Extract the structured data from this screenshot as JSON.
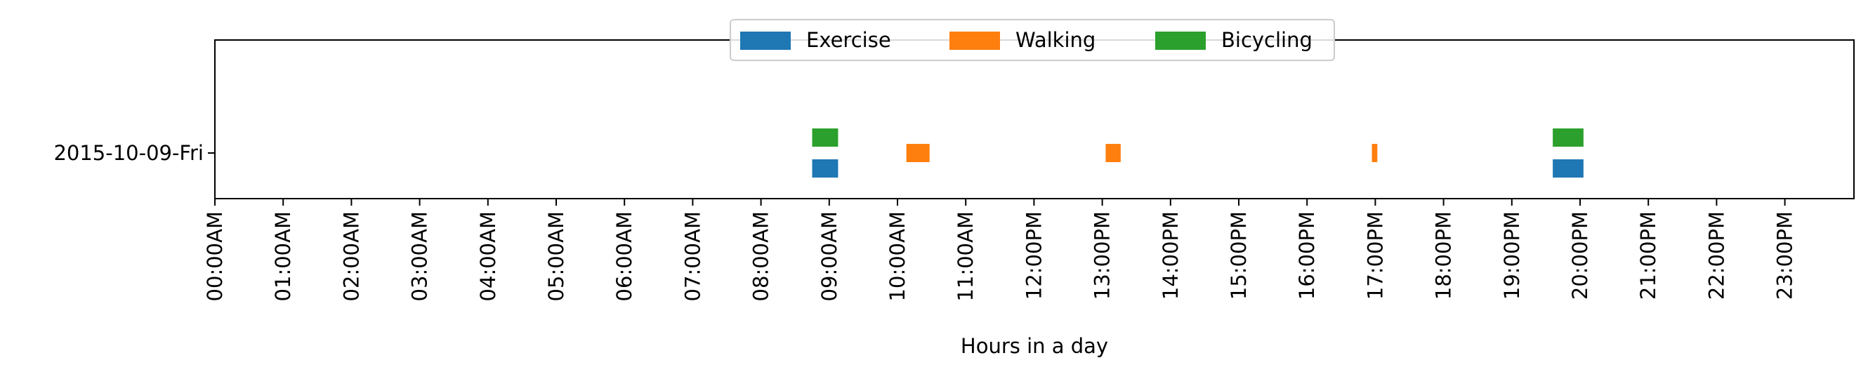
{
  "chart_data": {
    "type": "bar",
    "orientation": "horizontal",
    "title": "",
    "xlabel": "Hours in a day",
    "ylabel": "",
    "categories": [
      "2015-10-09-Fri"
    ],
    "xlim": [
      0,
      24
    ],
    "xticks": [
      0,
      1,
      2,
      3,
      4,
      5,
      6,
      7,
      8,
      9,
      10,
      11,
      12,
      13,
      14,
      15,
      16,
      17,
      18,
      19,
      20,
      21,
      22,
      23
    ],
    "xtick_labels": [
      "00:00AM",
      "01:00AM",
      "02:00AM",
      "03:00AM",
      "04:00AM",
      "05:00AM",
      "06:00AM",
      "07:00AM",
      "08:00AM",
      "09:00AM",
      "10:00AM",
      "11:00AM",
      "12:00PM",
      "13:00PM",
      "14:00PM",
      "15:00PM",
      "16:00PM",
      "17:00PM",
      "18:00PM",
      "19:00PM",
      "20:00PM",
      "21:00PM",
      "22:00PM",
      "23:00PM"
    ],
    "legend_position": "top-center",
    "grid": false,
    "series": [
      {
        "name": "Exercise",
        "color": "#1f77b4",
        "intervals": [
          {
            "category": "2015-10-09-Fri",
            "start": 8.75,
            "end": 9.13
          },
          {
            "category": "2015-10-09-Fri",
            "start": 19.6,
            "end": 20.05
          }
        ]
      },
      {
        "name": "Walking",
        "color": "#ff7f0e",
        "intervals": [
          {
            "category": "2015-10-09-Fri",
            "start": 10.13,
            "end": 10.47
          },
          {
            "category": "2015-10-09-Fri",
            "start": 13.05,
            "end": 13.27
          },
          {
            "category": "2015-10-09-Fri",
            "start": 16.95,
            "end": 17.03
          }
        ]
      },
      {
        "name": "Bicycling",
        "color": "#2ca02c",
        "intervals": [
          {
            "category": "2015-10-09-Fri",
            "start": 8.75,
            "end": 9.13
          },
          {
            "category": "2015-10-09-Fri",
            "start": 19.6,
            "end": 20.05
          }
        ]
      }
    ]
  }
}
